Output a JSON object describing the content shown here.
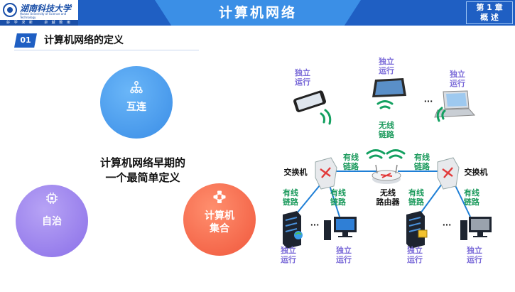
{
  "header": {
    "title": "计算机网络",
    "chapter_line1": "第 1 章",
    "chapter_line2": "概  述",
    "logo_name": "湖南科技大学",
    "logo_sub": "Hunan University of Science and Technology",
    "logo_motto": "好 学 求 新 　 卓 越 致 用"
  },
  "section": {
    "number": "01",
    "title": "计算机网络的定义"
  },
  "circles": {
    "hulian": {
      "label": "互连",
      "icon": "network-tree-icon",
      "color": "#4a9ef0"
    },
    "zizhi": {
      "label": "自治",
      "icon": "cpu-chip-icon",
      "color": "#9b82ee"
    },
    "jisuanji_line1": "计算机",
    "jisuanji_line2": "集合",
    "jisuanji_icon": "connected-nodes-icon",
    "jisuanji_color": "#f46a48"
  },
  "center_text": {
    "line1": "计算机网络早期的",
    "line2": "一个最简单定义"
  },
  "diagram": {
    "independent": "独立\n运行",
    "wired": "有线\n链路",
    "wireless": "无线\n链路",
    "switch": "交换机",
    "router": "无线\n路由器",
    "ellipsis": "···"
  }
}
